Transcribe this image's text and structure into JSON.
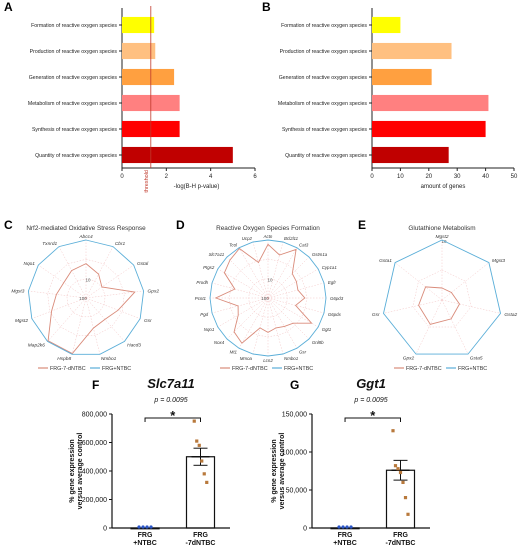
{
  "panels": {
    "A": {
      "label": "A"
    },
    "B": {
      "label": "B"
    },
    "C": {
      "label": "C"
    },
    "D": {
      "label": "D"
    },
    "E": {
      "label": "E"
    },
    "F": {
      "label": "F"
    },
    "G": {
      "label": "G"
    }
  },
  "chart_data": [
    {
      "id": "A",
      "type": "bar",
      "orientation": "horizontal",
      "categories": [
        "Formation of reactive oxygen species",
        "Production of reactive oxygen species",
        "Generation of reactive oxygen species",
        "Metabolism of reactive oxygen species",
        "Synthesis of reactive oxygen species",
        "Quantity of reactive oxygen species"
      ],
      "values": [
        1.45,
        1.5,
        2.35,
        2.6,
        2.6,
        5.0
      ],
      "colors": [
        "#ffff00",
        "#ffc080",
        "#ffa040",
        "#ff8080",
        "#ff0000",
        "#c00000"
      ],
      "xlabel": "-log(B-H p-value)",
      "xlim": [
        0,
        6
      ],
      "xticks": [
        "0",
        "2",
        "4",
        "6"
      ],
      "threshold": {
        "value": 1.3,
        "label": "threshold",
        "color": "#c0392b"
      }
    },
    {
      "id": "B",
      "type": "bar",
      "orientation": "horizontal",
      "categories": [
        "Formation of reactive oxygen species",
        "Production of reactive oxygen species",
        "Generation of reactive oxygen species",
        "Metabolism of reactive oxygen species",
        "Synthesis of reactive oxygen species",
        "Quantity of reactive oxygen species"
      ],
      "values": [
        10,
        28,
        21,
        41,
        40,
        27
      ],
      "colors": [
        "#ffff00",
        "#ffc080",
        "#ffa040",
        "#ff8080",
        "#ff0000",
        "#c00000"
      ],
      "xlabel": "amount of genes",
      "xlim": [
        0,
        50
      ],
      "xticks": [
        "0",
        "10",
        "20",
        "30",
        "40",
        "50"
      ]
    },
    {
      "id": "C",
      "type": "radar",
      "title": "Nrf2-mediated Oxidative Stress Response",
      "axes": [
        "Abcc4",
        "Cbr1",
        "Gstal",
        "Gpx2",
        "Gsr",
        "Hacd3",
        "Nmbo1",
        "Hspb8",
        "Map2k6",
        "Mgst2",
        "Mgst3",
        "Nqo1",
        "Txnrd1"
      ],
      "ticks": [
        "100",
        "10"
      ],
      "rmax": 1000,
      "series": [
        {
          "name": "FRG-7-dNTBC",
          "color": "#d98b7a",
          "values": [
            60,
            25,
            10,
            350,
            60,
            30,
            40,
            900,
            900,
            80,
            35,
            25,
            40
          ]
        },
        {
          "name": "FRG+NTBC",
          "color": "#5aaed8",
          "values": [
            1000,
            1000,
            1000,
            1000,
            1000,
            1000,
            1000,
            1000,
            1000,
            1000,
            1000,
            1000,
            1000
          ]
        }
      ]
    },
    {
      "id": "D",
      "type": "radar",
      "title": "Reactive Oxygen Species Formation",
      "axes": [
        "Actn",
        "Bcl2l11",
        "Cat3",
        "Gstm1a",
        "Cyp1a1",
        "Egfr",
        "G6pd3",
        "G6pdx",
        "Ggt1",
        "Gnl8b",
        "Gsr",
        "Nmbo1",
        "Lcn2",
        "Mmoa",
        "Mt1",
        "Nox4",
        "Nqo1",
        "Pgd",
        "Pcnt1",
        "Prodh",
        "Ptgs2",
        "Slc7a11",
        "Tcol",
        "Ucp2"
      ],
      "ticks": [
        "100",
        "10"
      ],
      "rmax": 1000,
      "series": [
        {
          "name": "FRG-7-dNTBC",
          "color": "#d98b7a",
          "values": [
            600,
            200,
            800,
            60,
            50,
            40,
            80,
            30,
            400,
            70,
            50,
            40,
            60,
            40,
            500,
            300,
            60,
            40,
            500,
            60,
            400,
            600,
            900,
            80
          ]
        },
        {
          "name": "FRG+NTBC",
          "color": "#5aaed8",
          "values": [
            1000,
            1000,
            1000,
            1000,
            1000,
            1000,
            1000,
            1000,
            1000,
            1000,
            1000,
            1000,
            1000,
            1000,
            1000,
            1000,
            1000,
            1000,
            1000,
            1000,
            1000,
            1000,
            1000,
            1000
          ]
        }
      ]
    },
    {
      "id": "E",
      "type": "radar",
      "title": "Glutathione Metabolism",
      "axes": [
        "Mgst2",
        "Mgst3",
        "Gsta2",
        "Gsta5",
        "Gpx2",
        "Gsr",
        "Gsta1"
      ],
      "ticks": [
        "10"
      ],
      "rmax": 10,
      "series": [
        {
          "name": "FRG-7-dNTBC",
          "color": "#d98b7a",
          "values": [
            2,
            2,
            3,
            3.5,
            4.5,
            4,
            3.5
          ]
        },
        {
          "name": "FRG+NTBC",
          "color": "#5aaed8",
          "values": [
            10,
            10,
            10,
            10,
            10,
            10,
            10
          ]
        }
      ]
    },
    {
      "id": "F",
      "type": "bar",
      "title": "Slc7a11",
      "categories": [
        "FRG\n+NTBC",
        "FRG\n-7dNTBC"
      ],
      "values": [
        100,
        500000
      ],
      "errors": [
        0,
        60000
      ],
      "points": [
        [
          0,
          0,
          0,
          0
        ],
        [
          750000,
          610000,
          580000,
          470000,
          380000,
          320000
        ]
      ],
      "ylabel": "% gene expression\nversus average control",
      "ylim": [
        0,
        800000
      ],
      "yticks": [
        "0",
        "200,000",
        "400,000",
        "600,000",
        "800,000"
      ],
      "pvalue": "p = 0.0095",
      "significance": "*"
    },
    {
      "id": "G",
      "type": "bar",
      "title": "Ggt1",
      "categories": [
        "FRG\n+NTBC",
        "FRG\n-7dNTBC"
      ],
      "values": [
        100,
        76000
      ],
      "errors": [
        0,
        13000
      ],
      "points": [
        [
          0,
          0,
          0,
          0
        ],
        [
          128000,
          82000,
          78000,
          73000,
          60000,
          40000,
          18000
        ]
      ],
      "ylabel": "% gene expression\nversus average control",
      "ylim": [
        0,
        150000
      ],
      "yticks": [
        "0",
        "50,000",
        "100,000",
        "150,000"
      ],
      "pvalue": "p = 0.0095",
      "significance": "*"
    }
  ]
}
